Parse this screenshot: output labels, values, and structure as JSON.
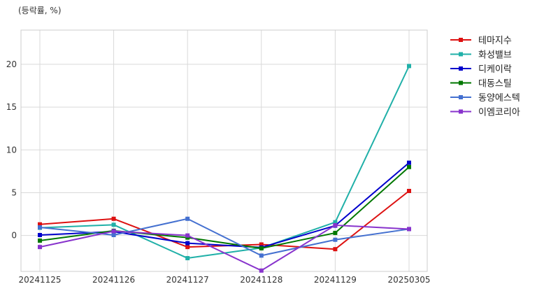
{
  "chart_data": {
    "type": "line",
    "unit_label": "(등락률, %)",
    "x": [
      "20241125",
      "20241126",
      "20241127",
      "20241128",
      "20241129",
      "20250305"
    ],
    "ylim": [
      -4.2,
      24
    ],
    "y_ticks": [
      0,
      5,
      10,
      15,
      20
    ],
    "grid": true,
    "legend_position": "outside-top-right",
    "series": [
      {
        "name": "테마지수",
        "color": "#dd1111",
        "values": [
          1.3,
          1.95,
          -1.35,
          -1.05,
          -1.6,
          5.2
        ]
      },
      {
        "name": "화성밸브",
        "color": "#20b0a8",
        "values": [
          0.9,
          1.25,
          -2.65,
          -1.45,
          1.55,
          19.8
        ]
      },
      {
        "name": "디케이락",
        "color": "#0000cc",
        "values": [
          0.05,
          0.45,
          -0.9,
          -1.4,
          1.15,
          8.5
        ]
      },
      {
        "name": "대동스틸",
        "color": "#007700",
        "values": [
          -0.6,
          0.55,
          -0.25,
          -1.5,
          0.3,
          8.0
        ]
      },
      {
        "name": "동양에스텍",
        "color": "#4470d0",
        "values": [
          0.95,
          0.05,
          1.95,
          -2.35,
          -0.5,
          0.75
        ]
      },
      {
        "name": "이엠코리아",
        "color": "#8833cc",
        "values": [
          -1.35,
          0.5,
          0.0,
          -4.1,
          1.2,
          0.75
        ]
      }
    ]
  }
}
